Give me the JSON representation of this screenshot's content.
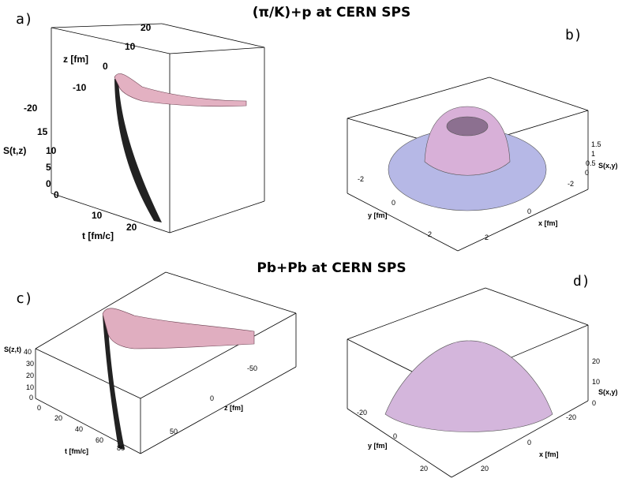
{
  "figure": {
    "title_top": "(π/K)+p at CERN SPS",
    "title_bottom": "Pb+Pb at CERN SPS"
  },
  "chart_data": [
    {
      "panel": "a)",
      "type": "surface",
      "zlabel": "S(t,z)",
      "xlabel": "t [fm/c]",
      "ylabel": "z [fm]",
      "x_ticks": [
        "0",
        "10",
        "20"
      ],
      "y_ticks": [
        "20",
        "10",
        "0",
        "-10",
        "-20"
      ],
      "z_ticks": [
        "15",
        "10",
        "5",
        "0"
      ],
      "xlim": [
        0,
        28
      ],
      "ylim": [
        -22,
        22
      ],
      "zlim": [
        0,
        15
      ],
      "surface_color": "#e8b4c8"
    },
    {
      "panel": "b)",
      "type": "surface",
      "zlabel": "S(x,y)",
      "xlabel": "x [fm]",
      "ylabel": "y [fm]",
      "x_ticks": [
        "-2",
        "0",
        "2"
      ],
      "y_ticks": [
        "-2",
        "0",
        "2"
      ],
      "z_ticks": [
        "1.5",
        "1",
        "0.5",
        "0"
      ],
      "zlim": [
        0,
        1.8
      ],
      "surface_color": "#c8b4e0"
    },
    {
      "panel": "c)",
      "type": "surface",
      "zlabel": "S(z,t)",
      "xlabel": "t [fm/c]",
      "ylabel": "z [fm]",
      "x_ticks": [
        "0",
        "20",
        "40",
        "60",
        "80"
      ],
      "y_ticks": [
        "-50",
        "0",
        "50"
      ],
      "z_ticks": [
        "40",
        "30",
        "20",
        "10",
        "0"
      ],
      "zlim": [
        0,
        40
      ],
      "surface_color": "#e8b4c8"
    },
    {
      "panel": "d)",
      "type": "surface",
      "zlabel": "S(x,y)",
      "xlabel": "x [fm]",
      "ylabel": "y [fm]",
      "x_ticks": [
        "-20",
        "0",
        "20"
      ],
      "y_ticks": [
        "-20",
        "0",
        "20"
      ],
      "z_ticks": [
        "20",
        "10",
        "0"
      ],
      "zlim": [
        0,
        28
      ],
      "surface_color": "#c8b4e0"
    }
  ]
}
